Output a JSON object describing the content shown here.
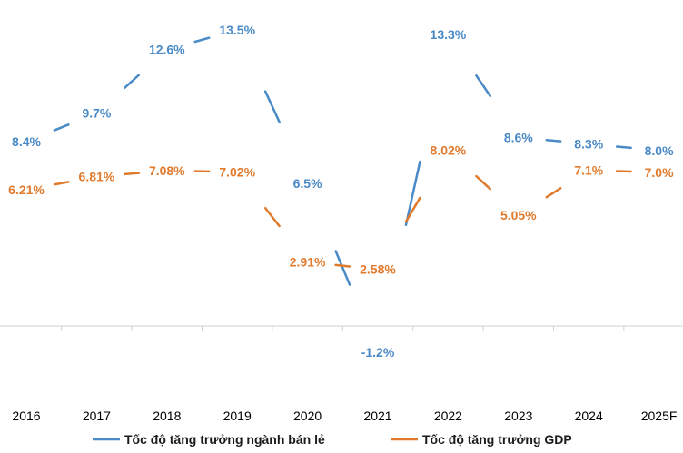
{
  "chart_data": {
    "type": "line",
    "categories": [
      "2016",
      "2017",
      "2018",
      "2019",
      "2020",
      "2021",
      "2022",
      "2023",
      "2024",
      "2025F"
    ],
    "series": [
      {
        "name": "Tốc độ tăng trưởng ngành bán lẻ",
        "color": "#4a8ac6",
        "values": [
          8.4,
          9.7,
          12.6,
          13.5,
          6.5,
          -1.2,
          13.3,
          8.6,
          8.3,
          8.0
        ],
        "labels": [
          "8.4%",
          "9.7%",
          "12.6%",
          "13.5%",
          "6.5%",
          "-1.2%",
          "13.3%",
          "8.6%",
          "8.3%",
          "8.0%"
        ]
      },
      {
        "name": "Tốc độ tăng trưởng GDP",
        "color": "#e07b2e",
        "values": [
          6.21,
          6.81,
          7.08,
          7.02,
          2.91,
          2.58,
          8.02,
          5.05,
          7.1,
          7.0
        ],
        "labels": [
          "6.21%",
          "6.81%",
          "7.08%",
          "7.02%",
          "2.91%",
          "2.58%",
          "8.02%",
          "5.05%",
          "7.1%",
          "7.0%"
        ]
      }
    ],
    "ylim": [
      -1.8,
      14.0
    ],
    "grid": false,
    "legend_position": "bottom"
  }
}
